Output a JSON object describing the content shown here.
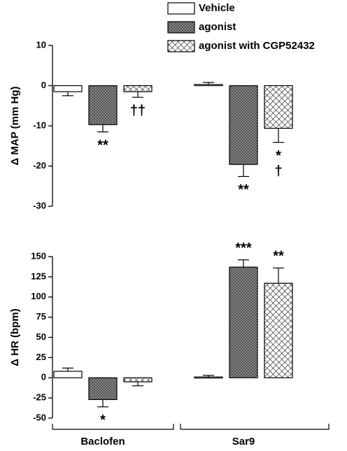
{
  "chart_data": [
    {
      "type": "bar",
      "ylabel": "Δ MAP (mm Hg)",
      "categories": [
        null,
        null
      ],
      "ylim": [
        -30,
        10
      ],
      "yticks": [
        10,
        0,
        -10,
        -20,
        -30
      ],
      "series": [
        {
          "name": "Vehicle",
          "color": "#ffffff",
          "values": [
            -1.5,
            0.3
          ],
          "errors": [
            1.0,
            0.5
          ],
          "annotations": [
            null,
            null
          ]
        },
        {
          "name": "agonist",
          "color": "#555555",
          "values": [
            -9.7,
            -19.6
          ],
          "errors": [
            1.8,
            3.0
          ],
          "annotations": [
            "**",
            "**"
          ]
        },
        {
          "name": "agonist with CGP52432",
          "color": "#bbbbbb",
          "values": [
            -1.5,
            -10.6
          ],
          "errors": [
            1.4,
            3.5
          ],
          "annotations": [
            "††",
            [
              "*",
              "†"
            ]
          ]
        }
      ]
    },
    {
      "type": "bar",
      "ylabel": "Δ HR (bpm)",
      "categories": [
        "Baclofen",
        "Sar9"
      ],
      "ylim": [
        -50,
        150
      ],
      "yticks": [
        150,
        125,
        100,
        75,
        50,
        25,
        0,
        -25,
        -50
      ],
      "series": [
        {
          "color": "#ffffff",
          "values": [
            8,
            1
          ],
          "errors": [
            4,
            2
          ],
          "annotations": [
            null,
            null
          ]
        },
        {
          "color": "#555555",
          "values": [
            -27,
            137
          ],
          "errors": [
            9,
            9
          ],
          "annotations": [
            "*",
            "***"
          ]
        },
        {
          "color": "#bbbbbb",
          "values": [
            -5,
            117
          ],
          "errors": [
            5,
            19
          ],
          "annotations": [
            null,
            "**"
          ]
        }
      ]
    }
  ]
}
